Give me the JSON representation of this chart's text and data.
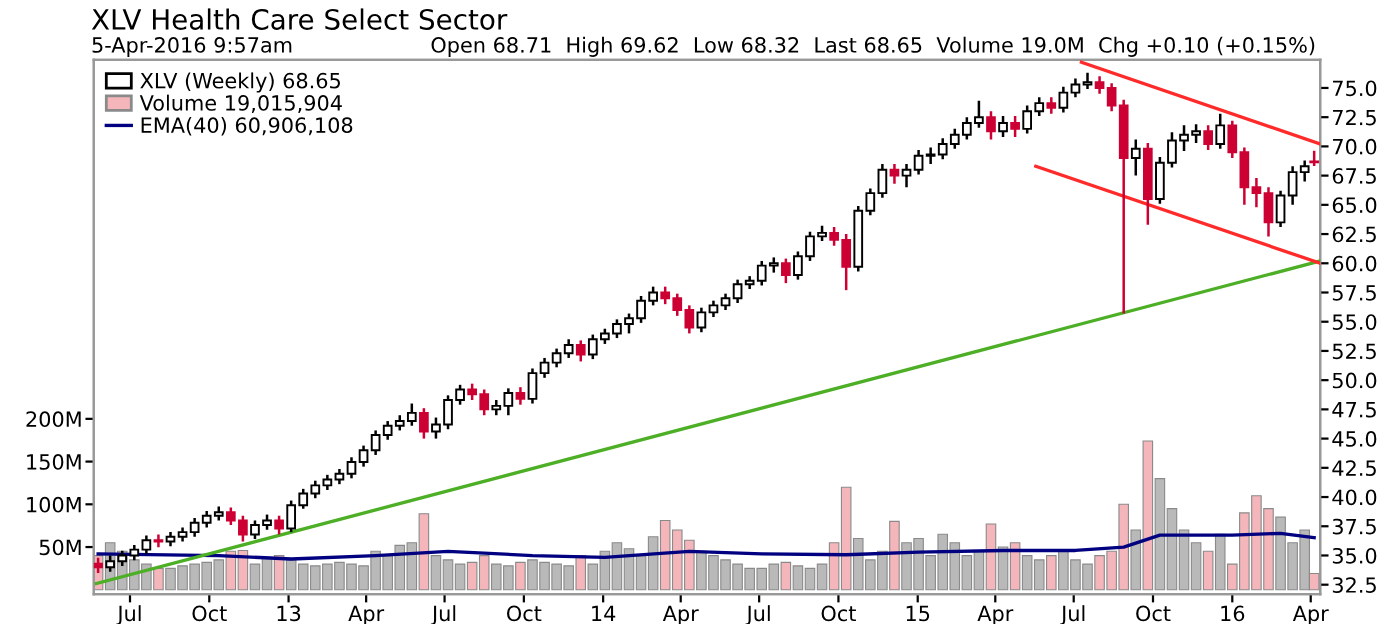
{
  "chart_data": {
    "type": "candlestick",
    "title": "XLV Health Care Select Sector",
    "subtitle": "5-Apr-2016 9:57am",
    "annotations": [
      "Open 68.71  High 69.62  Low 68.32  Last 68.65  Volume 19.0M  Chg +0.10 (+0.15%)"
    ],
    "x": [
      "2012-05-25",
      "2012-06-08",
      "2012-06-22",
      "2012-07-06",
      "2012-07-20",
      "2012-08-03",
      "2012-08-17",
      "2012-08-31",
      "2012-09-14",
      "2012-09-28",
      "2012-10-12",
      "2012-10-26",
      "2012-11-09",
      "2012-11-23",
      "2012-12-07",
      "2012-12-21",
      "2013-01-04",
      "2013-01-18",
      "2013-02-01",
      "2013-02-15",
      "2013-03-01",
      "2013-03-15",
      "2013-03-29",
      "2013-04-12",
      "2013-04-26",
      "2013-05-10",
      "2013-05-24",
      "2013-06-07",
      "2013-06-21",
      "2013-07-05",
      "2013-07-19",
      "2013-08-02",
      "2013-08-16",
      "2013-08-30",
      "2013-09-13",
      "2013-09-27",
      "2013-10-11",
      "2013-10-25",
      "2013-11-08",
      "2013-11-22",
      "2013-12-06",
      "2013-12-20",
      "2014-01-03",
      "2014-01-17",
      "2014-01-31",
      "2014-02-14",
      "2014-02-28",
      "2014-03-14",
      "2014-03-28",
      "2014-04-11",
      "2014-04-25",
      "2014-05-09",
      "2014-05-23",
      "2014-06-06",
      "2014-06-20",
      "2014-07-04",
      "2014-07-18",
      "2014-08-01",
      "2014-08-15",
      "2014-08-29",
      "2014-09-12",
      "2014-09-26",
      "2014-10-10",
      "2014-10-24",
      "2014-11-07",
      "2014-11-21",
      "2014-12-05",
      "2014-12-19",
      "2015-01-02",
      "2015-01-16",
      "2015-01-30",
      "2015-02-13",
      "2015-02-27",
      "2015-03-13",
      "2015-03-27",
      "2015-04-10",
      "2015-04-24",
      "2015-05-08",
      "2015-05-22",
      "2015-06-05",
      "2015-06-19",
      "2015-07-03",
      "2015-07-17",
      "2015-07-31",
      "2015-08-14",
      "2015-08-28",
      "2015-09-11",
      "2015-09-25",
      "2015-10-09",
      "2015-10-23",
      "2015-11-06",
      "2015-11-20",
      "2015-12-04",
      "2015-12-18",
      "2016-01-01",
      "2016-01-15",
      "2016-01-29",
      "2016-02-12",
      "2016-02-26",
      "2016-03-11",
      "2016-03-25",
      "2016-04-05"
    ],
    "series": [
      {
        "name": "XLV (Weekly) 68.65",
        "colors": [
          "#cc0033",
          "#ffffff",
          "#ffffff",
          "#ffffff",
          "#ffffff",
          "#cc0033",
          "#ffffff",
          "#ffffff",
          "#ffffff",
          "#ffffff",
          "#ffffff",
          "#cc0033",
          "#cc0033",
          "#ffffff",
          "#ffffff",
          "#cc0033",
          "#ffffff",
          "#ffffff",
          "#ffffff",
          "#ffffff",
          "#ffffff",
          "#ffffff",
          "#ffffff",
          "#ffffff",
          "#ffffff",
          "#ffffff",
          "#ffffff",
          "#cc0033",
          "#ffffff",
          "#ffffff",
          "#ffffff",
          "#cc0033",
          "#cc0033",
          "#ffffff",
          "#ffffff",
          "#cc0033",
          "#ffffff",
          "#ffffff",
          "#ffffff",
          "#ffffff",
          "#cc0033",
          "#ffffff",
          "#ffffff",
          "#ffffff",
          "#ffffff",
          "#ffffff",
          "#ffffff",
          "#cc0033",
          "#cc0033",
          "#cc0033",
          "#ffffff",
          "#ffffff",
          "#ffffff",
          "#ffffff",
          "#ffffff",
          "#ffffff",
          "#ffffff",
          "#cc0033",
          "#ffffff",
          "#ffffff",
          "#ffffff",
          "#cc0033",
          "#cc0033",
          "#ffffff",
          "#ffffff",
          "#ffffff",
          "#cc0033",
          "#ffffff",
          "#ffffff",
          "#ffffff",
          "#ffffff",
          "#ffffff",
          "#ffffff",
          "#ffffff",
          "#cc0033",
          "#ffffff",
          "#cc0033",
          "#ffffff",
          "#ffffff",
          "#cc0033",
          "#ffffff",
          "#ffffff",
          "#ffffff",
          "#cc0033",
          "#cc0033",
          "#cc0033",
          "#ffffff",
          "#cc0033",
          "#ffffff",
          "#ffffff",
          "#ffffff",
          "#ffffff",
          "#cc0033",
          "#ffffff",
          "#cc0033",
          "#cc0033",
          "#cc0033",
          "#cc0033",
          "#ffffff",
          "#ffffff",
          "#ffffff",
          "#cc0033"
        ],
        "ohlc": [
          [
            34.3,
            34.8,
            33.5,
            34.0
          ],
          [
            34.0,
            35.0,
            33.6,
            34.5
          ],
          [
            34.5,
            35.4,
            34.1,
            35.0
          ],
          [
            35.0,
            35.9,
            34.6,
            35.5
          ],
          [
            35.5,
            36.7,
            35.1,
            36.3
          ],
          [
            36.3,
            36.8,
            35.7,
            36.2
          ],
          [
            36.2,
            37.0,
            35.8,
            36.6
          ],
          [
            36.6,
            37.4,
            36.2,
            37.0
          ],
          [
            37.0,
            38.2,
            36.6,
            37.8
          ],
          [
            37.8,
            38.8,
            37.4,
            38.4
          ],
          [
            38.4,
            39.2,
            38.0,
            38.7
          ],
          [
            38.7,
            39.1,
            37.6,
            38.0
          ],
          [
            38.0,
            38.4,
            36.2,
            36.8
          ],
          [
            36.8,
            38.0,
            36.4,
            37.6
          ],
          [
            37.6,
            38.5,
            37.2,
            38.0
          ],
          [
            38.0,
            38.4,
            36.8,
            37.3
          ],
          [
            37.3,
            39.7,
            37.0,
            39.3
          ],
          [
            39.3,
            40.7,
            39.0,
            40.3
          ],
          [
            40.3,
            41.4,
            39.9,
            41.0
          ],
          [
            41.0,
            41.9,
            40.6,
            41.5
          ],
          [
            41.5,
            42.4,
            41.1,
            42.0
          ],
          [
            42.0,
            43.4,
            41.6,
            43.0
          ],
          [
            43.0,
            44.4,
            42.6,
            44.0
          ],
          [
            44.0,
            45.7,
            43.6,
            45.3
          ],
          [
            45.3,
            46.5,
            44.9,
            46.1
          ],
          [
            46.1,
            47.0,
            45.7,
            46.5
          ],
          [
            46.5,
            48.0,
            46.1,
            47.2
          ],
          [
            47.2,
            47.6,
            45.0,
            45.6
          ],
          [
            45.6,
            46.8,
            45.0,
            46.2
          ],
          [
            46.2,
            48.7,
            45.8,
            48.3
          ],
          [
            48.3,
            49.6,
            47.9,
            49.2
          ],
          [
            49.2,
            49.7,
            48.3,
            48.8
          ],
          [
            48.8,
            49.2,
            47.0,
            47.5
          ],
          [
            47.5,
            48.3,
            47.0,
            47.8
          ],
          [
            47.8,
            49.3,
            47.0,
            48.9
          ],
          [
            48.9,
            49.4,
            47.9,
            48.4
          ],
          [
            48.4,
            51.0,
            48.0,
            50.6
          ],
          [
            50.6,
            51.9,
            50.2,
            51.5
          ],
          [
            51.5,
            52.7,
            51.1,
            52.3
          ],
          [
            52.3,
            53.5,
            51.9,
            53.0
          ],
          [
            53.0,
            53.4,
            51.6,
            52.2
          ],
          [
            52.2,
            53.9,
            51.8,
            53.5
          ],
          [
            53.5,
            54.4,
            53.1,
            54.0
          ],
          [
            54.0,
            55.2,
            53.6,
            54.8
          ],
          [
            54.8,
            55.7,
            54.0,
            55.3
          ],
          [
            55.3,
            57.2,
            54.9,
            56.8
          ],
          [
            56.8,
            58.0,
            56.4,
            57.5
          ],
          [
            57.5,
            58.0,
            56.5,
            57.0
          ],
          [
            57.0,
            57.4,
            55.5,
            56.0
          ],
          [
            56.0,
            56.4,
            54.0,
            54.5
          ],
          [
            54.5,
            56.2,
            54.1,
            55.8
          ],
          [
            55.8,
            56.8,
            55.4,
            56.4
          ],
          [
            56.4,
            57.4,
            56.0,
            57.0
          ],
          [
            57.0,
            58.6,
            56.6,
            58.2
          ],
          [
            58.2,
            58.9,
            57.8,
            58.5
          ],
          [
            58.5,
            60.2,
            58.1,
            59.8
          ],
          [
            59.8,
            60.5,
            59.2,
            60.0
          ],
          [
            60.0,
            60.4,
            58.3,
            59.0
          ],
          [
            59.0,
            61.0,
            58.6,
            60.6
          ],
          [
            60.6,
            62.7,
            60.2,
            62.3
          ],
          [
            62.3,
            63.2,
            61.9,
            62.6
          ],
          [
            62.6,
            63.1,
            61.5,
            62.0
          ],
          [
            62.0,
            62.5,
            57.7,
            59.7
          ],
          [
            59.7,
            64.9,
            59.3,
            64.5
          ],
          [
            64.5,
            66.4,
            64.1,
            66.0
          ],
          [
            66.0,
            68.5,
            65.6,
            68.0
          ],
          [
            68.0,
            68.5,
            66.8,
            67.5
          ],
          [
            67.5,
            68.5,
            66.5,
            68.0
          ],
          [
            68.0,
            69.7,
            67.6,
            69.2
          ],
          [
            69.2,
            69.9,
            68.5,
            69.3
          ],
          [
            69.3,
            70.7,
            68.9,
            70.2
          ],
          [
            70.2,
            71.5,
            69.8,
            71.0
          ],
          [
            71.0,
            72.5,
            70.6,
            72.0
          ],
          [
            72.0,
            73.9,
            71.6,
            72.5
          ],
          [
            72.5,
            73.0,
            70.6,
            71.3
          ],
          [
            71.3,
            72.6,
            70.8,
            72.0
          ],
          [
            72.0,
            72.6,
            70.8,
            71.5
          ],
          [
            71.5,
            73.5,
            71.1,
            73.0
          ],
          [
            73.0,
            74.2,
            72.6,
            73.7
          ],
          [
            73.7,
            74.2,
            72.8,
            73.3
          ],
          [
            73.3,
            75.1,
            72.9,
            74.6
          ],
          [
            74.6,
            75.8,
            74.2,
            75.3
          ],
          [
            75.3,
            76.3,
            74.9,
            75.5
          ],
          [
            75.5,
            76.0,
            74.5,
            75.0
          ],
          [
            75.0,
            75.4,
            73.0,
            73.5
          ],
          [
            73.5,
            74.0,
            55.7,
            69.0
          ],
          [
            69.0,
            70.6,
            67.5,
            69.8
          ],
          [
            69.8,
            70.3,
            63.3,
            65.5
          ],
          [
            65.5,
            69.1,
            65.1,
            68.6
          ],
          [
            68.6,
            71.2,
            68.2,
            70.5
          ],
          [
            70.5,
            71.8,
            69.6,
            71.0
          ],
          [
            71.0,
            71.9,
            70.3,
            71.3
          ],
          [
            71.3,
            71.8,
            69.7,
            70.2
          ],
          [
            70.2,
            72.8,
            69.8,
            71.8
          ],
          [
            71.8,
            72.2,
            69.0,
            69.5
          ],
          [
            69.5,
            69.9,
            65.0,
            66.5
          ],
          [
            66.5,
            67.3,
            64.8,
            66.0
          ],
          [
            66.0,
            66.5,
            62.3,
            63.5
          ],
          [
            63.5,
            66.2,
            63.1,
            65.8
          ],
          [
            65.8,
            68.3,
            65.0,
            67.8
          ],
          [
            67.8,
            68.8,
            67.0,
            68.3
          ],
          [
            68.71,
            69.62,
            68.32,
            68.65
          ]
        ]
      },
      {
        "type": "bar",
        "axis": "y2",
        "name": "Volume 19,015,904",
        "values": [
          40,
          55,
          45,
          35,
          30,
          25,
          25,
          28,
          30,
          32,
          35,
          45,
          46,
          30,
          38,
          40,
          35,
          30,
          28,
          30,
          32,
          30,
          28,
          45,
          40,
          52,
          55,
          89,
          40,
          35,
          30,
          32,
          40,
          30,
          28,
          32,
          35,
          32,
          30,
          28,
          40,
          30,
          45,
          55,
          48,
          40,
          62,
          81,
          70,
          58,
          45,
          40,
          35,
          30,
          25,
          25,
          30,
          32,
          28,
          25,
          30,
          55,
          120,
          60,
          35,
          45,
          80,
          55,
          60,
          40,
          65,
          55,
          40,
          45,
          77,
          50,
          55,
          40,
          35,
          40,
          45,
          35,
          30,
          40,
          45,
          100,
          70,
          174,
          130,
          95,
          70,
          55,
          45,
          65,
          30,
          90,
          110,
          95,
          85,
          55,
          70,
          19
        ],
        "colors": [
          "#f4b6ba",
          "#b9b9b9",
          "#b9b9b9",
          "#b9b9b9",
          "#b9b9b9",
          "#f4b6ba",
          "#b9b9b9",
          "#b9b9b9",
          "#b9b9b9",
          "#b9b9b9",
          "#b9b9b9",
          "#f4b6ba",
          "#f4b6ba",
          "#b9b9b9",
          "#b9b9b9",
          "#f4b6ba",
          "#b9b9b9",
          "#b9b9b9",
          "#b9b9b9",
          "#b9b9b9",
          "#b9b9b9",
          "#b9b9b9",
          "#b9b9b9",
          "#b9b9b9",
          "#b9b9b9",
          "#b9b9b9",
          "#b9b9b9",
          "#f4b6ba",
          "#b9b9b9",
          "#b9b9b9",
          "#b9b9b9",
          "#f4b6ba",
          "#f4b6ba",
          "#b9b9b9",
          "#b9b9b9",
          "#f4b6ba",
          "#b9b9b9",
          "#b9b9b9",
          "#b9b9b9",
          "#b9b9b9",
          "#f4b6ba",
          "#b9b9b9",
          "#b9b9b9",
          "#b9b9b9",
          "#b9b9b9",
          "#b9b9b9",
          "#b9b9b9",
          "#f4b6ba",
          "#f4b6ba",
          "#f4b6ba",
          "#b9b9b9",
          "#b9b9b9",
          "#b9b9b9",
          "#b9b9b9",
          "#b9b9b9",
          "#b9b9b9",
          "#b9b9b9",
          "#f4b6ba",
          "#b9b9b9",
          "#b9b9b9",
          "#b9b9b9",
          "#f4b6ba",
          "#f4b6ba",
          "#b9b9b9",
          "#b9b9b9",
          "#b9b9b9",
          "#f4b6ba",
          "#b9b9b9",
          "#b9b9b9",
          "#b9b9b9",
          "#b9b9b9",
          "#b9b9b9",
          "#b9b9b9",
          "#b9b9b9",
          "#f4b6ba",
          "#b9b9b9",
          "#f4b6ba",
          "#b9b9b9",
          "#b9b9b9",
          "#f4b6ba",
          "#b9b9b9",
          "#b9b9b9",
          "#b9b9b9",
          "#f4b6ba",
          "#f4b6ba",
          "#f4b6ba",
          "#b9b9b9",
          "#f4b6ba",
          "#b9b9b9",
          "#b9b9b9",
          "#b9b9b9",
          "#b9b9b9",
          "#f4b6ba",
          "#b9b9b9",
          "#f4b6ba",
          "#f4b6ba",
          "#f4b6ba",
          "#f4b6ba",
          "#b9b9b9",
          "#b9b9b9",
          "#b9b9b9",
          "#f4b6ba"
        ]
      },
      {
        "type": "line",
        "axis": "y2",
        "name": "EMA(40) 60,906,108",
        "color": "#000080",
        "x": [
          "2012-05-25",
          "2012-10-12",
          "2013-01-04",
          "2013-04-12",
          "2013-07-05",
          "2013-10-11",
          "2014-01-03",
          "2014-04-11",
          "2014-07-04",
          "2014-10-10",
          "2015-01-02",
          "2015-04-10",
          "2015-07-03",
          "2015-08-28",
          "2015-10-09",
          "2016-01-01",
          "2016-02-26",
          "2016-04-05"
        ],
        "values": [
          42,
          40,
          36,
          40,
          45,
          40,
          38,
          45,
          42,
          41,
          44,
          46,
          46,
          50,
          64,
          64,
          66,
          61
        ]
      },
      {
        "type": "line",
        "color": "#4caf25",
        "x": [
          "2012-05-23",
          "2016-04-12"
        ],
        "values": [
          32.6,
          60.2
        ]
      },
      {
        "type": "line",
        "color": "#ff2a2a",
        "x": [
          "2015-07-10",
          "2016-04-12"
        ],
        "values": [
          77.2,
          70.2
        ]
      },
      {
        "type": "line",
        "color": "#ff2a2a",
        "x": [
          "2015-05-18",
          "2016-04-12"
        ],
        "values": [
          68.3,
          60.0
        ]
      }
    ],
    "xlim": [
      "2012-05-20",
      "2016-04-12"
    ],
    "xticks": [
      {
        "value": "2012-07-01",
        "label": "Jul"
      },
      {
        "value": "2012-10-01",
        "label": "Oct"
      },
      {
        "value": "2013-01-01",
        "label": "13"
      },
      {
        "value": "2013-04-01",
        "label": "Apr"
      },
      {
        "value": "2013-07-01",
        "label": "Jul"
      },
      {
        "value": "2013-10-01",
        "label": "Oct"
      },
      {
        "value": "2014-01-01",
        "label": "14"
      },
      {
        "value": "2014-04-01",
        "label": "Apr"
      },
      {
        "value": "2014-07-01",
        "label": "Jul"
      },
      {
        "value": "2014-10-01",
        "label": "Oct"
      },
      {
        "value": "2015-01-01",
        "label": "15"
      },
      {
        "value": "2015-04-01",
        "label": "Apr"
      },
      {
        "value": "2015-07-01",
        "label": "Jul"
      },
      {
        "value": "2015-10-01",
        "label": "Oct"
      },
      {
        "value": "2016-01-01",
        "label": "16"
      },
      {
        "value": "2016-04-01",
        "label": "Apr"
      }
    ],
    "ylim": [
      31.7,
      77.4
    ],
    "yticks": [
      32.5,
      {
        "value": 35,
        "label": "35.0"
      },
      37.5,
      {
        "value": 40,
        "label": "40.0"
      },
      42.5,
      {
        "value": 45,
        "label": "45.0"
      },
      47.5,
      {
        "value": 50,
        "label": "50.0"
      },
      52.5,
      {
        "value": 55,
        "label": "55.0"
      },
      57.5,
      {
        "value": 60,
        "label": "60.0"
      },
      62.5,
      {
        "value": 65,
        "label": "65.0"
      },
      67.5,
      {
        "value": 70,
        "label": "70.0"
      },
      72.5,
      {
        "value": 75,
        "label": "75.0"
      }
    ],
    "y2lim": [
      -5,
      620
    ],
    "y2ticks": [
      {
        "value": 50,
        "label": "50M"
      },
      {
        "value": 100,
        "label": "100M"
      },
      {
        "value": 150,
        "label": "150M"
      },
      {
        "value": 200,
        "label": "200M"
      }
    ],
    "legend": "top left",
    "grid": false
  }
}
